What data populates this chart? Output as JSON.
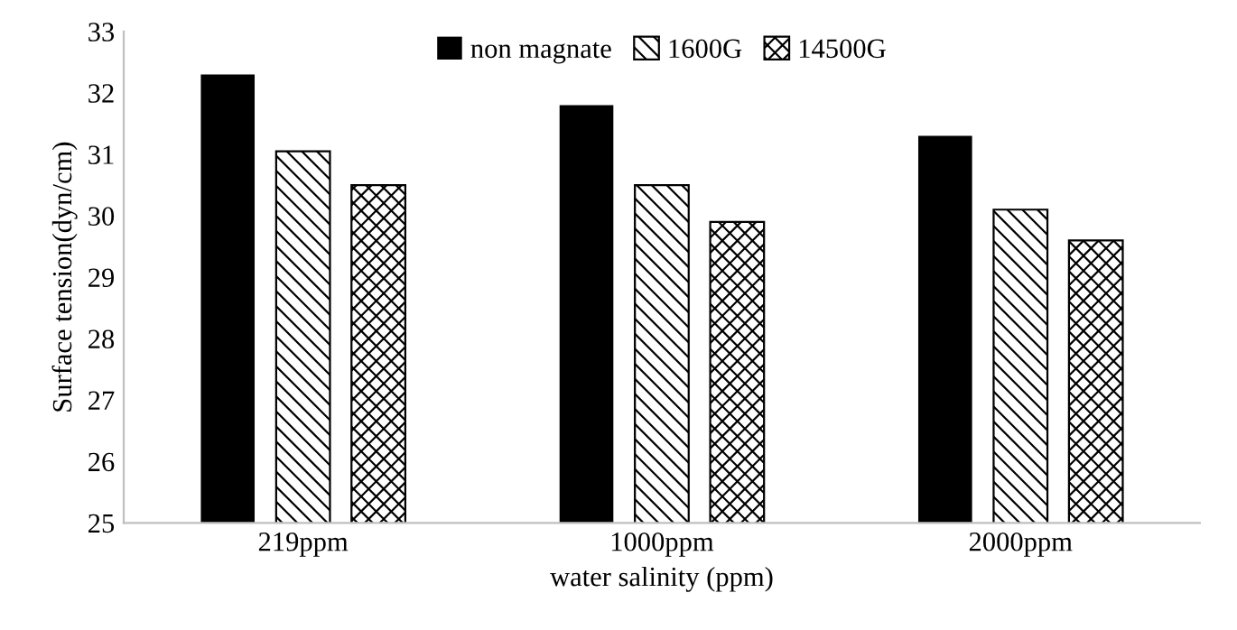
{
  "chart_data": {
    "type": "bar",
    "xlabel": "water salinity (ppm)",
    "ylabel": "Surface tension(dyn/cm)",
    "categories": [
      "219ppm",
      "1000ppm",
      "2000ppm"
    ],
    "series": [
      {
        "name": "non magnate",
        "color": "#000000",
        "values": [
          32.3,
          31.8,
          31.3
        ]
      },
      {
        "name": "1600G",
        "color": "#000000",
        "values": [
          31.05,
          30.5,
          30.1
        ]
      },
      {
        "name": "14500G",
        "color": "#000000",
        "values": [
          30.5,
          29.9,
          29.6
        ]
      }
    ],
    "ylim": [
      25,
      33
    ],
    "yticks": [
      25,
      26,
      27,
      28,
      29,
      30,
      31,
      32,
      33
    ],
    "grid": false,
    "legend": "top"
  }
}
